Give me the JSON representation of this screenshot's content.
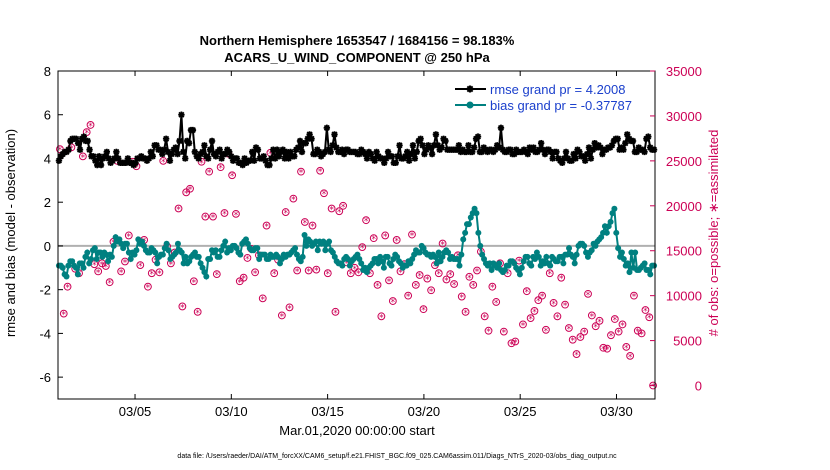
{
  "chart_data": {
    "type": "line",
    "title_line1": "Northern Hemisphere 1653547 / 1684156 = 98.183%",
    "title_line2": "ACARS_U_WIND_COMPONENT @ 250 hPa",
    "xlabel": "Mar.01,2020 00:00:00 start",
    "ylabel_left": "rmse and bias (model - observation)",
    "ylabel_right": "# of obs: o=possible; ∗=assimilated",
    "footer": "data file: /Users/raeder/DAI/ATM_forcXX/CAM6_setup/f.e21.FHIST_BGC.f09_025.CAM6assim.011/Diags_NTrS_2020-03/obs_diag_output.nc",
    "xlim": [
      1,
      32
    ],
    "ylim_left": [
      -7,
      8
    ],
    "ylim_right": [
      -1500,
      35000
    ],
    "x_ticks": [
      5,
      10,
      15,
      20,
      25,
      30
    ],
    "x_tick_labels": [
      "03/05",
      "03/10",
      "03/15",
      "03/20",
      "03/25",
      "03/30"
    ],
    "y_left_ticks": [
      "8",
      "6",
      "4",
      "2",
      "0",
      "-2",
      "-4",
      "-6"
    ],
    "y_right_ticks": [
      "35000",
      "30000",
      "25000",
      "20000",
      "15000",
      "10000",
      "5000",
      "0"
    ],
    "colors": {
      "rmse": "#000000",
      "bias": "#008080",
      "obs": "#cc0055",
      "zero_line": "#b0b0b0",
      "legend_text": "#1a3fcc"
    },
    "series": [
      {
        "name": "rmse grand pr = 4.2008",
        "values": [
          3.9,
          4.1,
          4.2,
          4.3,
          4.3,
          4.4,
          4.8,
          4.9,
          4.9,
          4.9,
          4.7,
          4.4,
          4.9,
          5.0,
          4.8,
          4.8,
          4.4,
          4.1,
          4.1,
          3.9,
          3.7,
          4.1,
          3.7,
          4.0,
          4.1,
          4.3,
          4.0,
          3.8,
          3.9,
          4.0,
          4.3,
          4.0,
          3.8,
          3.8,
          3.8,
          3.8,
          4.0,
          3.8,
          3.8,
          3.7,
          3.8,
          4.0,
          4.0,
          4.1,
          4.0,
          4.0,
          3.9,
          4.0,
          4.3,
          4.1,
          4.6,
          4.6,
          4.4,
          4.4,
          4.2,
          4.4,
          4.9,
          4.3,
          3.9,
          4.2,
          4.4,
          4.5,
          4.2,
          4.8,
          6.0,
          4.3,
          4.0,
          4.8,
          4.7,
          5.3,
          5.3,
          4.3,
          4.1,
          4.0,
          4.2,
          4.3,
          4.6,
          4.1,
          4.0,
          4.4,
          4.8,
          4.2,
          4.1,
          4.3,
          4.4,
          4.0,
          4.2,
          4.2,
          4.4,
          4.3,
          4.1,
          3.9,
          4.0,
          4.0,
          3.8,
          3.8,
          3.7,
          4.0,
          3.8,
          3.9,
          3.9,
          4.3,
          3.9,
          4.5,
          4.4,
          4.0,
          4.0,
          4.1,
          3.9,
          3.7,
          3.7,
          4.0,
          4.4,
          4.0,
          4.4,
          4.1,
          4.3,
          4.4,
          4.0,
          4.3,
          4.0,
          4.3,
          4.1,
          4.1,
          4.4,
          4.5,
          4.8,
          4.3,
          4.7,
          4.7,
          4.9,
          5.1,
          4.9,
          4.2,
          4.2,
          4.4,
          4.3,
          4.1,
          4.2,
          4.3,
          5.4,
          4.4,
          4.3,
          4.6,
          5.1,
          4.5,
          4.3,
          4.3,
          4.4,
          4.2,
          4.4,
          4.4,
          4.3,
          4.3,
          4.3,
          4.3,
          4.2,
          4.2,
          4.4,
          4.3,
          4.2,
          4.0,
          4.3,
          4.2,
          4.0,
          3.9,
          4.3,
          4.1,
          4.0,
          4.0,
          3.8,
          4.0,
          4.3,
          4.1,
          4.1,
          3.8,
          3.8,
          4.1,
          4.6,
          4.0,
          4.0,
          4.1,
          4.3,
          3.9,
          4.2,
          4.6,
          4.0,
          4.3,
          4.8,
          4.9,
          4.6,
          4.2,
          4.4,
          4.6,
          4.5,
          4.2,
          4.6,
          5.1,
          4.6,
          4.4,
          4.5,
          4.9,
          4.8,
          4.4,
          4.4,
          4.4,
          4.4,
          4.4,
          4.4,
          4.6,
          4.3,
          4.4,
          4.3,
          4.3,
          4.6,
          4.3,
          4.3,
          4.5,
          4.9,
          5.0,
          4.3,
          4.3,
          4.5,
          4.4,
          4.3,
          4.4,
          4.4,
          4.3,
          4.4,
          4.6,
          4.5,
          5.4,
          4.4,
          4.3,
          4.3,
          4.4,
          4.4,
          4.2,
          4.2,
          4.4,
          4.3,
          4.3,
          4.3,
          4.4,
          4.3,
          4.2,
          4.5,
          4.4,
          4.5,
          4.3,
          4.3,
          4.4,
          4.7,
          4.4,
          4.2,
          4.4,
          4.4,
          4.3,
          4.0,
          4.3,
          4.3,
          4.0,
          3.9,
          3.8,
          4.0,
          4.3,
          4.0,
          3.9,
          3.9,
          4.2,
          4.0,
          4.4,
          4.3,
          4.1,
          4.1,
          3.9,
          4.2,
          4.5,
          4.0,
          4.4,
          4.7,
          4.5,
          4.6,
          4.5,
          4.2,
          4.4,
          4.4,
          4.5,
          4.5,
          4.6,
          4.8,
          4.9,
          4.9,
          4.4,
          4.5,
          4.4,
          4.7,
          5.1,
          4.9,
          4.8,
          4.8,
          4.3,
          4.3,
          4.5,
          4.4,
          4.4,
          4.3,
          4.9,
          5.0,
          4.5,
          4.4,
          4.4
        ]
      },
      {
        "name": "bias grand pr = -0.37787",
        "values": [
          -0.9,
          -0.9,
          -1.0,
          -1.3,
          -1.4,
          -0.9,
          -0.7,
          -0.7,
          -0.9,
          -1.0,
          -1.3,
          -0.8,
          -0.8,
          -1.0,
          -0.5,
          -0.3,
          -0.8,
          -0.6,
          -0.2,
          -0.1,
          -0.6,
          -0.3,
          -0.3,
          -0.5,
          -0.3,
          -0.4,
          -0.7,
          -0.4,
          -0.5,
          0.0,
          0.4,
          0.2,
          0.3,
          0.1,
          -0.1,
          0.1,
          0.1,
          -0.3,
          -0.6,
          -0.3,
          -0.4,
          -0.2,
          0.3,
          0.1,
          0.2,
          0.0,
          -0.2,
          -0.3,
          -0.3,
          -0.1,
          -0.2,
          -0.3,
          -0.8,
          -0.5,
          -0.4,
          -0.4,
          -0.1,
          0.1,
          -0.2,
          -0.6,
          -0.5,
          -0.4,
          -0.3,
          0.1,
          -0.2,
          -0.3,
          -0.8,
          -0.5,
          -0.8,
          -0.7,
          -0.5,
          -0.4,
          -0.3,
          -0.5,
          -0.5,
          -0.8,
          -1.0,
          -1.2,
          -1.4,
          -0.6,
          -0.6,
          -0.2,
          -0.3,
          -0.2,
          -0.5,
          -0.5,
          -0.2,
          0.0,
          0.2,
          -0.3,
          -0.1,
          -0.2,
          0.0,
          0.0,
          -0.1,
          -0.3,
          -0.4,
          0.1,
          0.2,
          0.3,
          0.1,
          -0.1,
          -0.2,
          -0.2,
          -0.1,
          -0.1,
          -0.6,
          -0.4,
          -0.4,
          -0.4,
          -0.6,
          -0.6,
          -0.4,
          -0.5,
          -0.5,
          -0.4,
          -0.5,
          -0.8,
          -0.6,
          -0.4,
          -0.5,
          -0.4,
          -0.4,
          -0.3,
          -0.2,
          -0.1,
          -0.4,
          -0.6,
          -0.7,
          -0.5,
          0.5,
          0.0,
          0.3,
          0.2,
          0.0,
          0.1,
          0.2,
          -0.2,
          0.2,
          0.1,
          0.2,
          -0.2,
          0.1,
          0.2,
          -0.2,
          -0.3,
          -0.5,
          -0.7,
          -0.8,
          -0.8,
          -0.9,
          -0.6,
          -0.5,
          -0.6,
          -0.9,
          -0.7,
          -0.6,
          -0.5,
          -0.4,
          -0.6,
          -0.8,
          -1.1,
          -1.0,
          -1.2,
          -1.0,
          -0.9,
          -0.8,
          -0.6,
          -0.6,
          -0.8,
          -0.5,
          -0.7,
          -1.0,
          -0.5,
          -0.5,
          -0.8,
          -0.9,
          -0.6,
          -0.4,
          -0.5,
          -0.7,
          -0.8,
          -1.0,
          -0.9,
          -0.9,
          -0.7,
          -0.8,
          -0.6,
          -0.4,
          -0.2,
          -0.3,
          -0.3,
          0.0,
          -0.1,
          -0.3,
          -0.4,
          -0.4,
          -0.5,
          -0.4,
          -0.5,
          -0.8,
          -0.3,
          -0.7,
          -0.5,
          -0.3,
          -0.2,
          -0.3,
          -0.6,
          -0.5,
          -0.6,
          -0.6,
          -0.6,
          -0.9,
          -0.4,
          0.3,
          0.6,
          1.0,
          1.0,
          1.3,
          1.5,
          1.7,
          1.5,
          0.6,
          0.0,
          -0.4,
          -0.6,
          -0.8,
          -0.9,
          -0.8,
          -1.1,
          -0.8,
          -0.9,
          -1.0,
          -0.8,
          -1.1,
          -1.2,
          -1.1,
          -0.9,
          -0.9,
          -0.7,
          -0.7,
          -0.8,
          -1.0,
          -1.1,
          -1.3,
          -1.0,
          -0.7,
          -0.5,
          -0.5,
          -0.8,
          -0.9,
          -0.5,
          -0.6,
          -0.3,
          -0.5,
          -0.9,
          -0.7,
          -0.8,
          -0.5,
          -0.8,
          -0.9,
          -0.5,
          -0.6,
          -0.7,
          -0.7,
          -0.5,
          -0.5,
          -0.8,
          -0.4,
          -0.4,
          -0.1,
          -0.4,
          -0.5,
          -0.8,
          -0.4,
          0.0,
          0.1,
          0.1,
          0.0,
          -0.3,
          -0.5,
          -0.3,
          -0.2,
          0.1,
          0.0,
          0.2,
          0.3,
          0.4,
          0.6,
          0.9,
          0.6,
          0.9,
          1.1,
          1.5,
          1.7,
          0.6,
          -0.1,
          -0.5,
          -0.3,
          -0.6,
          -0.9,
          -0.8,
          -1.2,
          -0.3,
          -1.0,
          -0.3,
          -1.1,
          -1.1,
          -1.0,
          -0.9,
          -0.8,
          -1.1,
          -1.1,
          -1.3,
          -0.9,
          -0.9
        ]
      }
    ],
    "obs_series": [
      {
        "name": "# of obs possible / assimilated",
        "values": [
          26300,
          8000,
          11000,
          26500,
          13000,
          12500,
          25500,
          28200,
          29000,
          13500,
          12700,
          13600,
          13300,
          11500,
          16000,
          25000,
          12700,
          13800,
          16700,
          24900,
          24400,
          13400,
          16200,
          11000,
          12500,
          14000,
          12600,
          25000,
          15500,
          13600,
          14800,
          19700,
          8800,
          21500,
          21900,
          11600,
          8200,
          24900,
          18800,
          23800,
          18800,
          12400,
          24300,
          19200,
          25800,
          23400,
          19100,
          11600,
          12000,
          14200,
          15200,
          12600,
          14500,
          9700,
          17800,
          25900,
          12500,
          14000,
          7800,
          19300,
          8700,
          20800,
          12800,
          23800,
          18200,
          12800,
          17800,
          12900,
          23900,
          21400,
          12500,
          19700,
          8200,
          19400,
          20000,
          13700,
          12500,
          13100,
          12600,
          15400,
          18400,
          12500,
          16400,
          11200,
          7700,
          16700,
          11700,
          9400,
          16200,
          12700,
          13500,
          10000,
          16800,
          11200,
          12300,
          8500,
          11900,
          10600,
          13400,
          12500,
          15800,
          11800,
          12400,
          11300,
          14500,
          9900,
          8200,
          12100,
          11200,
          12800,
          14900,
          7700,
          6100,
          11000,
          9300,
          13600,
          6000,
          12500,
          4700,
          4900,
          13900,
          6800,
          10500,
          7500,
          8300,
          9500,
          10000,
          6200,
          12500,
          9200,
          7700,
          12000,
          9000,
          6400,
          5100,
          3500,
          5400,
          6000,
          10200,
          7800,
          6600,
          7200,
          4200,
          4100,
          5600,
          7400,
          6000,
          6800,
          4300,
          3300,
          10000,
          6100,
          5800,
          8400,
          7600,
          0
        ]
      }
    ]
  }
}
